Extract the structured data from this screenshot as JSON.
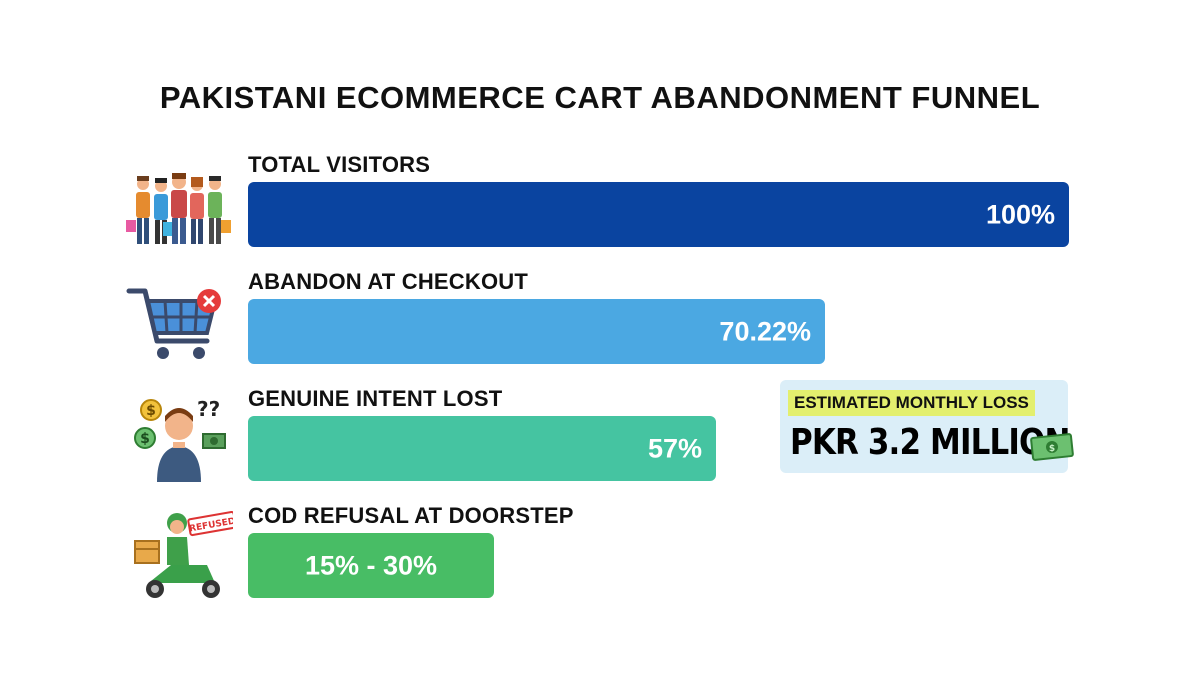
{
  "chart_data": {
    "type": "bar",
    "title": "PAKISTANI ECOMMERCE CART ABANDONMENT FUNNEL",
    "categories": [
      "TOTAL VISITORS",
      "ABANDON AT CHECKOUT",
      "GENUINE INTENT LOST",
      "COD REFUSAL AT DOORSTEP"
    ],
    "values": [
      100,
      70.22,
      57,
      30
    ],
    "value_labels": [
      "100%",
      "70.22%",
      "57%",
      "15% - 30%"
    ],
    "colors": [
      "#0a44a0",
      "#4ba8e2",
      "#45c4a1",
      "#48bd65"
    ],
    "orientation": "horizontal"
  },
  "icons": {
    "row1": "shoppers-group-icon",
    "row2": "shopping-cart-cancel-icon",
    "row3": "confused-person-money-icon",
    "row4": "delivery-scooter-refused-icon"
  },
  "stamp_text": "REFUSED",
  "loss_card": {
    "label": "ESTIMATED MONTHLY LOSS",
    "amount": "PKR 3.2 MILLION",
    "icon": "money-cash-icon"
  }
}
